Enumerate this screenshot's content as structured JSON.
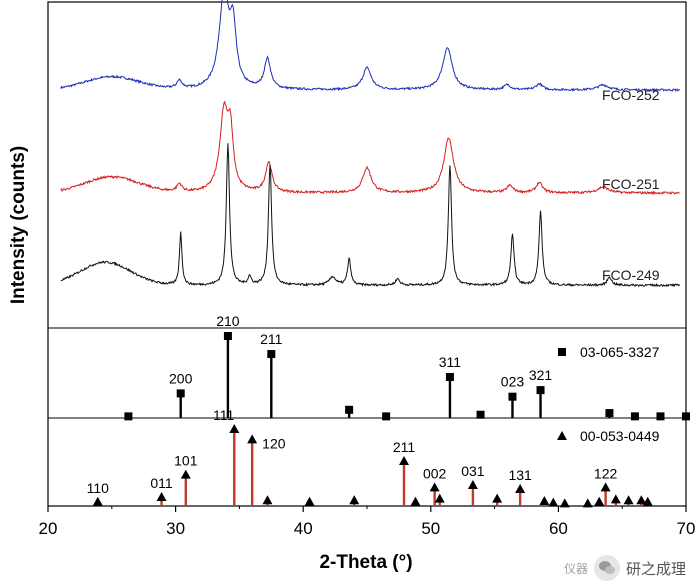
{
  "chart_data": {
    "type": "line",
    "xlabel": "2-Theta (°)",
    "ylabel": "Intensity (counts)",
    "xlim": [
      20,
      70
    ],
    "x_ticks": [
      20,
      30,
      40,
      50,
      60,
      70
    ],
    "series": [
      {
        "name": "FCO-252",
        "color": "#1f2db8",
        "baseline": 0.18,
        "broad_hump": {
          "center": 25,
          "width": 3.0,
          "height": 0.13
        },
        "peaks": [
          {
            "pos": 30.3,
            "height": 0.08,
            "width": 0.25
          },
          {
            "pos": 33.8,
            "height": 0.95,
            "width": 0.45
          },
          {
            "pos": 34.5,
            "height": 0.55,
            "width": 0.3
          },
          {
            "pos": 37.2,
            "height": 0.3,
            "width": 0.3
          },
          {
            "pos": 45.0,
            "height": 0.22,
            "width": 0.4
          },
          {
            "pos": 51.3,
            "height": 0.42,
            "width": 0.45
          },
          {
            "pos": 56.0,
            "height": 0.05,
            "width": 0.3
          },
          {
            "pos": 58.5,
            "height": 0.06,
            "width": 0.3
          },
          {
            "pos": 63.5,
            "height": 0.05,
            "width": 0.5
          }
        ],
        "noise": 0.02
      },
      {
        "name": "FCO-251",
        "color": "#d42020",
        "baseline": 0.15,
        "broad_hump": {
          "center": 25,
          "width": 3.0,
          "height": 0.16
        },
        "peaks": [
          {
            "pos": 30.3,
            "height": 0.08,
            "width": 0.25
          },
          {
            "pos": 33.8,
            "height": 0.8,
            "width": 0.4
          },
          {
            "pos": 34.3,
            "height": 0.5,
            "width": 0.25
          },
          {
            "pos": 37.3,
            "height": 0.3,
            "width": 0.3
          },
          {
            "pos": 45.0,
            "height": 0.25,
            "width": 0.4
          },
          {
            "pos": 51.4,
            "height": 0.55,
            "width": 0.45
          },
          {
            "pos": 56.2,
            "height": 0.07,
            "width": 0.3
          },
          {
            "pos": 58.5,
            "height": 0.1,
            "width": 0.3
          },
          {
            "pos": 63.5,
            "height": 0.06,
            "width": 0.5
          }
        ],
        "noise": 0.022
      },
      {
        "name": "FCO-249",
        "color": "#111111",
        "baseline": 0.14,
        "broad_hump": {
          "center": 24.5,
          "width": 2.8,
          "height": 0.22
        },
        "peaks": [
          {
            "pos": 30.4,
            "height": 0.5,
            "width": 0.12
          },
          {
            "pos": 34.1,
            "height": 1.35,
            "width": 0.15
          },
          {
            "pos": 35.8,
            "height": 0.08,
            "width": 0.15
          },
          {
            "pos": 37.4,
            "height": 1.15,
            "width": 0.15
          },
          {
            "pos": 42.3,
            "height": 0.08,
            "width": 0.3
          },
          {
            "pos": 43.6,
            "height": 0.25,
            "width": 0.15
          },
          {
            "pos": 47.4,
            "height": 0.06,
            "width": 0.2
          },
          {
            "pos": 51.5,
            "height": 1.15,
            "width": 0.15
          },
          {
            "pos": 56.4,
            "height": 0.48,
            "width": 0.15
          },
          {
            "pos": 58.6,
            "height": 0.7,
            "width": 0.15
          },
          {
            "pos": 64.0,
            "height": 0.08,
            "width": 0.2
          }
        ],
        "noise": 0.02
      }
    ],
    "reference_patterns": [
      {
        "name": "03-065-3327",
        "marker": "square",
        "line_color": "#000000",
        "peaks": [
          {
            "pos": 26.3,
            "rel": 0.02
          },
          {
            "pos": 30.4,
            "rel": 0.3,
            "label": "200"
          },
          {
            "pos": 34.1,
            "rel": 1.0,
            "label": "210"
          },
          {
            "pos": 37.5,
            "rel": 0.78,
            "label": "211"
          },
          {
            "pos": 43.6,
            "rel": 0.1
          },
          {
            "pos": 46.5,
            "rel": 0.02
          },
          {
            "pos": 51.5,
            "rel": 0.5,
            "label": "311"
          },
          {
            "pos": 53.9,
            "rel": 0.04
          },
          {
            "pos": 56.4,
            "rel": 0.26,
            "label": "023"
          },
          {
            "pos": 58.6,
            "rel": 0.34,
            "label": "321"
          },
          {
            "pos": 64.0,
            "rel": 0.06
          },
          {
            "pos": 66.0,
            "rel": 0.02
          },
          {
            "pos": 68.0,
            "rel": 0.02
          },
          {
            "pos": 70.0,
            "rel": 0.02
          }
        ]
      },
      {
        "name": "00-053-0449",
        "marker": "triangle",
        "line_color": "#c0392b",
        "peaks": [
          {
            "pos": 23.9,
            "rel": 0.04,
            "label": "110"
          },
          {
            "pos": 28.9,
            "rel": 0.1,
            "label": "011"
          },
          {
            "pos": 30.8,
            "rel": 0.38,
            "label": "101"
          },
          {
            "pos": 34.6,
            "rel": 0.95,
            "label": "111"
          },
          {
            "pos": 36.0,
            "rel": 0.82,
            "label": "120"
          },
          {
            "pos": 37.2,
            "rel": 0.06
          },
          {
            "pos": 40.5,
            "rel": 0.04
          },
          {
            "pos": 44.0,
            "rel": 0.06
          },
          {
            "pos": 47.9,
            "rel": 0.55,
            "label": "211"
          },
          {
            "pos": 48.8,
            "rel": 0.04
          },
          {
            "pos": 50.3,
            "rel": 0.22,
            "label": "002"
          },
          {
            "pos": 50.7,
            "rel": 0.08
          },
          {
            "pos": 53.3,
            "rel": 0.25,
            "label": "031"
          },
          {
            "pos": 55.2,
            "rel": 0.08
          },
          {
            "pos": 57.0,
            "rel": 0.2,
            "label": "131"
          },
          {
            "pos": 58.9,
            "rel": 0.05
          },
          {
            "pos": 59.6,
            "rel": 0.03
          },
          {
            "pos": 60.5,
            "rel": 0.02
          },
          {
            "pos": 62.3,
            "rel": 0.02
          },
          {
            "pos": 63.2,
            "rel": 0.04
          },
          {
            "pos": 63.7,
            "rel": 0.22,
            "label": "122"
          },
          {
            "pos": 64.5,
            "rel": 0.07
          },
          {
            "pos": 65.5,
            "rel": 0.06
          },
          {
            "pos": 66.5,
            "rel": 0.06
          },
          {
            "pos": 67.0,
            "rel": 0.04
          }
        ]
      }
    ]
  },
  "watermark": {
    "text": "研之成理",
    "logo_text": "仪器"
  }
}
